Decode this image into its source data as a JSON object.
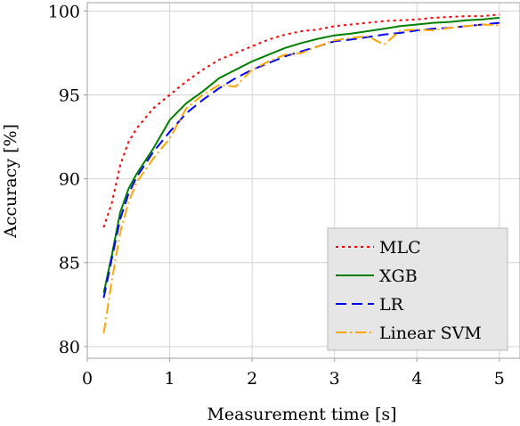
{
  "chart_data": {
    "type": "line",
    "title": "",
    "xlabel": "Measurement time [s]",
    "ylabel": "Accuracy [%]",
    "xlim": [
      0,
      5.25
    ],
    "ylim": [
      79.3,
      100.5
    ],
    "x_ticks": [
      0,
      1,
      2,
      3,
      4,
      5
    ],
    "x_tick_labels": [
      "0",
      "1",
      "2",
      "3",
      "4",
      "5"
    ],
    "y_ticks": [
      80,
      85,
      90,
      95,
      100
    ],
    "y_tick_labels": [
      "80",
      "85",
      "90",
      "95",
      "100"
    ],
    "grid": true,
    "legend_position": "bottom-right",
    "series": [
      {
        "name": "MLC",
        "color": "#ff0000",
        "dash": "dotted",
        "x": [
          0.2,
          0.3,
          0.4,
          0.5,
          0.6,
          0.8,
          1.0,
          1.2,
          1.4,
          1.6,
          1.8,
          2.0,
          2.2,
          2.4,
          2.6,
          2.8,
          3.0,
          3.2,
          3.4,
          3.6,
          3.8,
          4.0,
          4.2,
          4.4,
          4.6,
          4.8,
          5.0
        ],
        "values": [
          87.1,
          88.6,
          90.8,
          92.2,
          93.0,
          94.2,
          95.0,
          95.8,
          96.5,
          97.1,
          97.5,
          97.9,
          98.3,
          98.6,
          98.8,
          98.9,
          99.1,
          99.2,
          99.3,
          99.4,
          99.45,
          99.5,
          99.6,
          99.65,
          99.7,
          99.7,
          99.8
        ]
      },
      {
        "name": "XGB",
        "color": "#008000",
        "dash": "solid",
        "x": [
          0.2,
          0.3,
          0.4,
          0.5,
          0.6,
          0.8,
          1.0,
          1.2,
          1.4,
          1.6,
          1.8,
          2.0,
          2.2,
          2.4,
          2.6,
          2.8,
          3.0,
          3.2,
          3.4,
          3.6,
          3.8,
          4.0,
          4.2,
          4.4,
          4.6,
          4.8,
          5.0
        ],
        "values": [
          83.2,
          85.5,
          88.0,
          89.4,
          90.3,
          91.8,
          93.5,
          94.5,
          95.2,
          96.0,
          96.5,
          97.0,
          97.4,
          97.8,
          98.1,
          98.35,
          98.55,
          98.65,
          98.8,
          98.95,
          99.1,
          99.2,
          99.3,
          99.35,
          99.45,
          99.5,
          99.6
        ]
      },
      {
        "name": "LR",
        "color": "#0000ff",
        "dash": "dashed",
        "x": [
          0.2,
          0.3,
          0.4,
          0.5,
          0.6,
          0.8,
          1.0,
          1.2,
          1.4,
          1.6,
          1.8,
          2.0,
          2.2,
          2.4,
          2.6,
          2.8,
          3.0,
          3.2,
          3.4,
          3.6,
          3.8,
          4.0,
          4.2,
          4.4,
          4.6,
          4.8,
          5.0
        ],
        "values": [
          82.9,
          85.3,
          87.6,
          89.1,
          90.1,
          91.6,
          92.8,
          93.9,
          94.7,
          95.4,
          96.0,
          96.5,
          96.9,
          97.3,
          97.6,
          97.9,
          98.2,
          98.3,
          98.45,
          98.6,
          98.7,
          98.85,
          98.95,
          99.0,
          99.1,
          99.2,
          99.3
        ]
      },
      {
        "name": "Linear SVM",
        "color": "#ffa500",
        "dash": "dashdot",
        "x": [
          0.2,
          0.3,
          0.4,
          0.5,
          0.6,
          0.8,
          1.0,
          1.2,
          1.4,
          1.6,
          1.8,
          2.0,
          2.2,
          2.4,
          2.6,
          2.8,
          3.0,
          3.2,
          3.4,
          3.6,
          3.8,
          4.0,
          4.2,
          4.4,
          4.6,
          4.8,
          5.0
        ],
        "values": [
          80.8,
          84.0,
          86.8,
          88.6,
          89.8,
          91.2,
          92.4,
          94.2,
          95.0,
          95.6,
          95.5,
          96.5,
          97.0,
          97.4,
          97.5,
          97.9,
          98.25,
          98.4,
          98.5,
          98.0,
          98.85,
          98.9,
          98.85,
          99.0,
          99.1,
          99.2,
          99.15
        ]
      }
    ]
  }
}
